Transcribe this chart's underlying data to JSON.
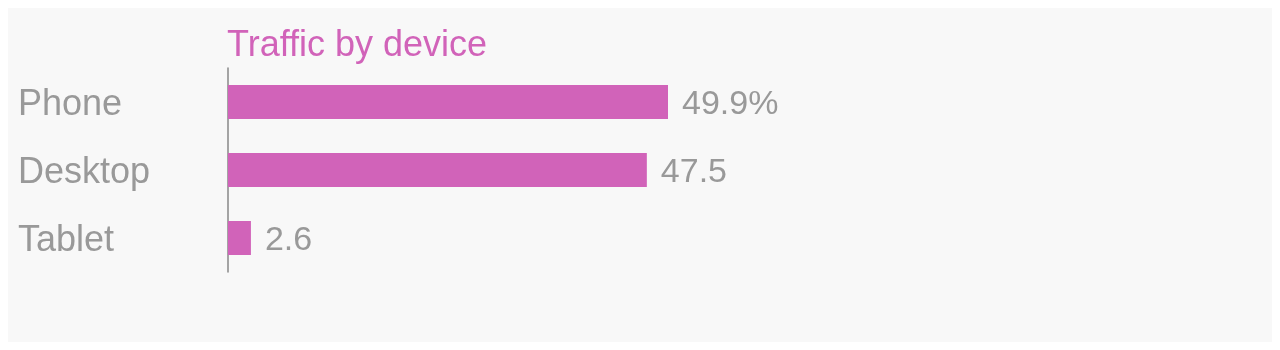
{
  "chart_data": {
    "type": "bar",
    "orientation": "horizontal",
    "title": "Traffic by device",
    "categories": [
      "Phone",
      "Desktop",
      "Tablet"
    ],
    "values": [
      49.9,
      47.5,
      2.6
    ],
    "value_labels": [
      "49.9%",
      "47.5",
      "2.6"
    ],
    "color": "#d163b9"
  }
}
